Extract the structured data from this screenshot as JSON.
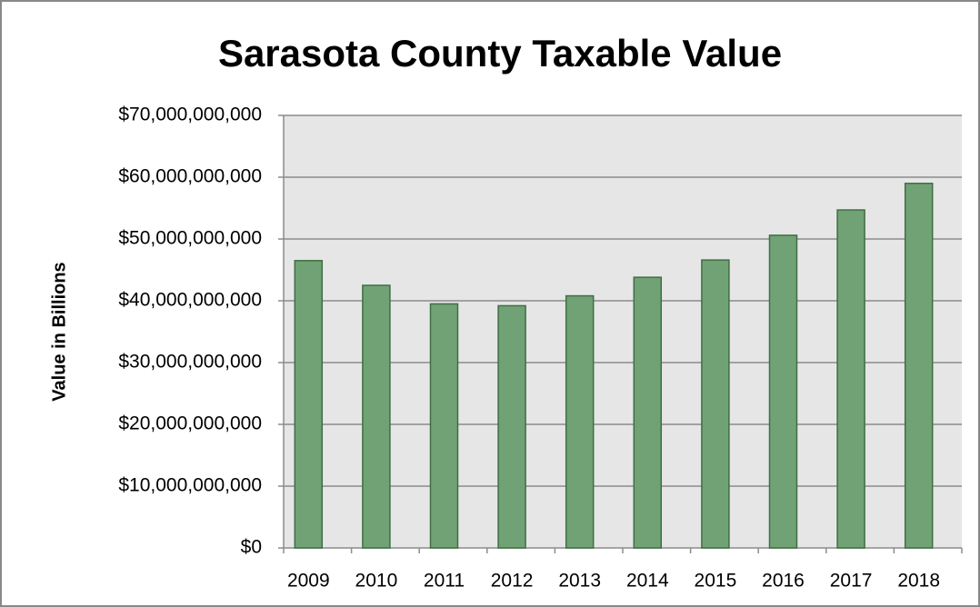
{
  "chart_data": {
    "type": "bar",
    "title": "Sarasota County Taxable Value",
    "y_label": "Value in Billions",
    "categories": [
      "2009",
      "2010",
      "2011",
      "2012",
      "2013",
      "2014",
      "2015",
      "2016",
      "2017",
      "2018"
    ],
    "values": [
      46500000000,
      42500000000,
      39500000000,
      39200000000,
      40800000000,
      43800000000,
      46600000000,
      50600000000,
      54700000000,
      59000000000
    ],
    "color": "#71a276",
    "ylim": [
      0,
      70000000000
    ],
    "yticks": [
      {
        "value": 0,
        "label": "$0"
      },
      {
        "value": 10000000000,
        "label": "$10,000,000,000"
      },
      {
        "value": 20000000000,
        "label": "$20,000,000,000"
      },
      {
        "value": 30000000000,
        "label": "$30,000,000,000"
      },
      {
        "value": 40000000000,
        "label": "$40,000,000,000"
      },
      {
        "value": 50000000000,
        "label": "$50,000,000,000"
      },
      {
        "value": 60000000000,
        "label": "$60,000,000,000"
      },
      {
        "value": 70000000000,
        "label": "$70,000,000,000"
      }
    ],
    "grid": true
  }
}
